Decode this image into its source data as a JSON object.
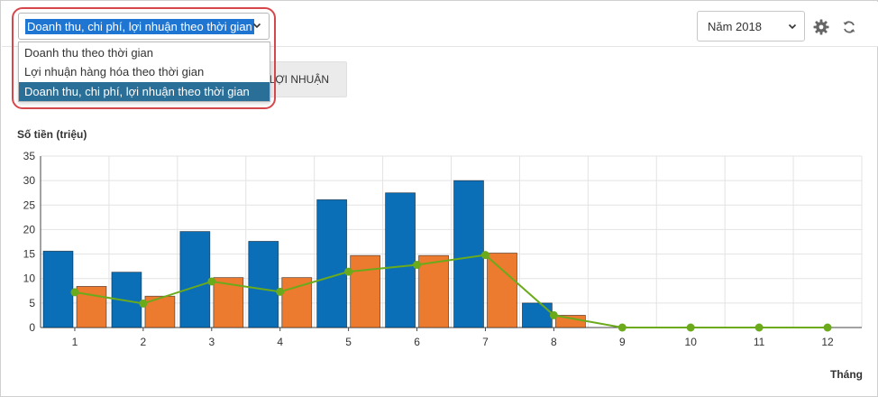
{
  "report_select": {
    "selected": "Doanh thu, chi phí, lợi nhuận theo thời gian",
    "options": [
      "Doanh thu theo thời gian",
      "Lợi nhuận hàng hóa theo thời gian",
      "Doanh thu, chi phí, lợi nhuận theo thời gian"
    ],
    "highlighted_index": 2
  },
  "tab_button": {
    "label": "LỢI NHUẬN"
  },
  "year_select": {
    "value": "Năm 2018"
  },
  "icons": {
    "settings": "gear-icon",
    "refresh": "sync-icon",
    "dropdown": "chevron-down-icon"
  },
  "colors": {
    "accent": "#1e76d2",
    "highlight_ring": "#d6474b",
    "selected_option": "#2a6f97"
  },
  "chart_data": {
    "type": "bar",
    "ylabel": "Số tiền (triệu)",
    "xlabel": "Tháng",
    "categories": [
      "1",
      "2",
      "3",
      "4",
      "5",
      "6",
      "7",
      "8",
      "9",
      "10",
      "11",
      "12"
    ],
    "ylim": [
      0,
      35
    ],
    "yticks": [
      0,
      5,
      10,
      15,
      20,
      25,
      30,
      35
    ],
    "grid": true,
    "series": [
      {
        "kind": "bar",
        "color": "#0b6fb8",
        "values": [
          15.6,
          11.3,
          19.6,
          17.6,
          26.1,
          27.5,
          30.0,
          5.0,
          0,
          0,
          0,
          0
        ]
      },
      {
        "kind": "bar",
        "color": "#ec7a2f",
        "values": [
          8.4,
          6.4,
          10.2,
          10.2,
          14.7,
          14.7,
          15.2,
          2.5,
          0,
          0,
          0,
          0
        ]
      },
      {
        "kind": "line",
        "color": "#6aaa1b",
        "values": [
          7.2,
          4.9,
          9.4,
          7.3,
          11.4,
          12.8,
          14.8,
          2.5,
          0,
          0,
          0,
          0
        ]
      }
    ]
  }
}
